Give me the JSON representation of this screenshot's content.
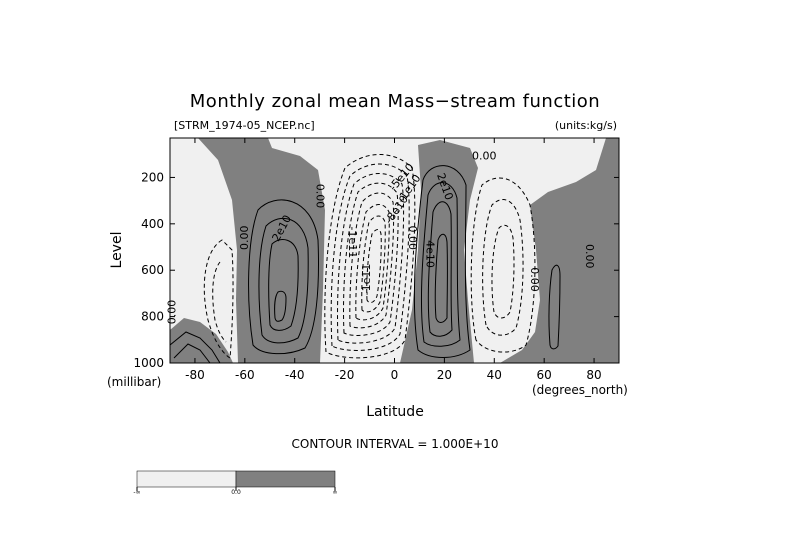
{
  "chart_data": {
    "type": "contour",
    "title": "Monthly zonal mean Mass−stream function",
    "subtitle_left": "[STRM_1974-05_NCEP.nc]",
    "subtitle_right": "(units:kg/s)",
    "xlabel": "Latitude",
    "x_units": "(degrees_north)",
    "ylabel": "Level",
    "y_units": "(millibar)",
    "xlim": [
      -90,
      90
    ],
    "ylim": [
      1000,
      30
    ],
    "x_ticks": [
      -80,
      -60,
      -40,
      -20,
      0,
      20,
      40,
      60,
      80
    ],
    "y_ticks": [
      200,
      400,
      600,
      800,
      1000
    ],
    "contour_interval_text": "CONTOUR INTERVAL = 1.000E+10",
    "contour_labels": [
      {
        "text": "2e10",
        "lat": -45,
        "lev": 420,
        "angle": -62
      },
      {
        "text": "0.00",
        "lat": -60,
        "lev": 460,
        "angle": -90
      },
      {
        "text": "0.00",
        "lat": -30,
        "lev": 280,
        "angle": 90
      },
      {
        "text": "0.00",
        "lat": -89,
        "lev": 780,
        "angle": -90
      },
      {
        "text": "-1e11",
        "lat": -17,
        "lev": 480,
        "angle": 90
      },
      {
        "text": "-1e11",
        "lat": -11,
        "lev": 640,
        "angle": -90
      },
      {
        "text": "-8e10",
        "lat": 1,
        "lev": 340,
        "angle": -55
      },
      {
        "text": "-1e10",
        "lat": 6,
        "lev": 250,
        "angle": -55
      },
      {
        "text": "-5e10",
        "lat": 3,
        "lev": 200,
        "angle": -50
      },
      {
        "text": "0.00",
        "lat": 7,
        "lev": 460,
        "angle": 90
      },
      {
        "text": "2e10",
        "lat": 20,
        "lev": 240,
        "angle": 70
      },
      {
        "text": "4e10",
        "lat": 14,
        "lev": 530,
        "angle": 90
      },
      {
        "text": "0.00",
        "lat": 36,
        "lev": 110,
        "angle": 0
      },
      {
        "text": "0.00",
        "lat": 56,
        "lev": 640,
        "angle": 90
      },
      {
        "text": "0.00",
        "lat": 78,
        "lev": 540,
        "angle": 90
      }
    ],
    "colorbar": {
      "labels": [
        "-∞",
        "0.0",
        "∞"
      ],
      "colors": [
        "#f0f0f0",
        "#808080"
      ]
    },
    "fill_negative": "#f0f0f0",
    "fill_positive": "#808080"
  }
}
